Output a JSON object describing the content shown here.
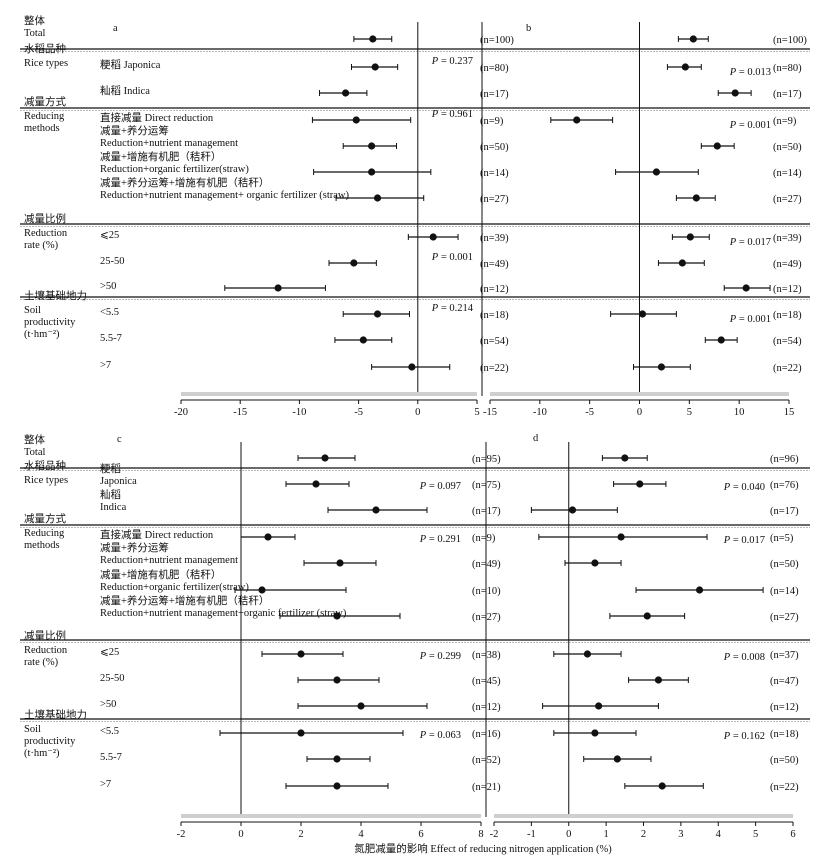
{
  "labels": {
    "groups": [
      {
        "cn": "整体",
        "en": [
          "Total"
        ]
      },
      {
        "cn": "水稻品种",
        "en": [
          "Rice types"
        ]
      },
      {
        "cn": "减量方式",
        "en": [
          "Reducing",
          "methods"
        ]
      },
      {
        "cn": "减量比例",
        "en": [
          "Reduction",
          "rate (%)"
        ]
      },
      {
        "cn": "土壤基础地力",
        "en": [
          "Soil",
          "productivity",
          "(t·hm⁻²)"
        ]
      }
    ],
    "top_rows": [
      [],
      [
        "粳稻 Japonica"
      ],
      [
        "籼稻 Indica"
      ],
      [
        "直接减量 Direct reduction"
      ],
      [
        "减量+养分运筹",
        "Reduction+nutrient management"
      ],
      [
        "减量+增施有机肥（秸秆）",
        "Reduction+organic fertilizer(straw)"
      ],
      [
        "减量+养分运筹+增施有机肥（秸秆）",
        "Reduction+nutrient management+ organic fertilizer (straw)"
      ],
      [
        "⩽25"
      ],
      [
        "25-50"
      ],
      [
        ">50"
      ],
      [
        "<5.5"
      ],
      [
        "5.5-7"
      ],
      [
        ">7"
      ]
    ],
    "bottom_rows": [
      [],
      [
        "粳稻",
        "Japonica"
      ],
      [
        "籼稻",
        "Indica"
      ],
      [
        "直接减量 Direct reduction"
      ],
      [
        "减量+养分运筹",
        "Reduction+nutrient management"
      ],
      [
        "减量+增施有机肥（秸秆）",
        "Reduction+organic fertilizer(straw)"
      ],
      [
        "减量+养分运筹+增施有机肥（秸秆）",
        "Reduction+nutrient management+organic fertilizer (straw)"
      ],
      [
        "⩽25"
      ],
      [
        "25-50"
      ],
      [
        ">50"
      ],
      [
        "<5.5"
      ],
      [
        "5.5-7"
      ],
      [
        ">7"
      ]
    ]
  },
  "xlabel": "氮肥减量的影响 Effect of reducing nitrogen application (%)",
  "chart_data": [
    {
      "type": "scatter",
      "panel": "a",
      "xlim": [
        -20,
        5
      ],
      "xticks": [
        -20,
        -15,
        -10,
        -5,
        0,
        5
      ],
      "points": [
        {
          "x": -3.8,
          "lo": -5.4,
          "hi": -2.2
        },
        {
          "x": -3.6,
          "lo": -5.6,
          "hi": -1.7
        },
        {
          "x": -6.1,
          "lo": -8.3,
          "hi": -4.3
        },
        {
          "x": -5.2,
          "lo": -8.9,
          "hi": -0.6
        },
        {
          "x": -3.9,
          "lo": -6.3,
          "hi": -1.8
        },
        {
          "x": -3.9,
          "lo": -8.8,
          "hi": 1.1
        },
        {
          "x": -3.4,
          "lo": -6.9,
          "hi": 0.5
        },
        {
          "x": 1.3,
          "lo": -0.8,
          "hi": 3.4
        },
        {
          "x": -5.4,
          "lo": -7.5,
          "hi": -3.5
        },
        {
          "x": -11.8,
          "lo": -16.3,
          "hi": -7.8
        },
        {
          "x": -3.4,
          "lo": -6.3,
          "hi": -0.7
        },
        {
          "x": -4.6,
          "lo": -7.0,
          "hi": -2.2
        },
        {
          "x": -0.5,
          "lo": -3.9,
          "hi": 2.7
        }
      ],
      "n": [
        "(n=100)",
        "(n=80)",
        "(n=17)",
        "(n=9)",
        "(n=50)",
        "(n=14)",
        "(n=27)",
        "(n=39)",
        "(n=49)",
        "(n=12)",
        "(n=18)",
        "(n=54)",
        "(n=22)"
      ],
      "p": [
        {
          "row": 1,
          "value": "0.237"
        },
        {
          "row": 3,
          "value": "0.961"
        },
        {
          "row": 8,
          "value": "0.001"
        },
        {
          "row": 10,
          "value": "0.214"
        }
      ]
    },
    {
      "type": "scatter",
      "panel": "b",
      "xlim": [
        -15,
        15
      ],
      "xticks": [
        -15,
        -10,
        -5,
        0,
        5,
        10,
        15
      ],
      "points": [
        {
          "x": 5.4,
          "lo": 3.9,
          "hi": 6.9
        },
        {
          "x": 4.6,
          "lo": 2.8,
          "hi": 6.2
        },
        {
          "x": 9.6,
          "lo": 7.9,
          "hi": 11.2
        },
        {
          "x": -6.3,
          "lo": -8.9,
          "hi": -2.7
        },
        {
          "x": 7.8,
          "lo": 6.2,
          "hi": 9.5
        },
        {
          "x": 1.7,
          "lo": -2.4,
          "hi": 5.9
        },
        {
          "x": 5.7,
          "lo": 3.7,
          "hi": 7.6
        },
        {
          "x": 5.1,
          "lo": 3.3,
          "hi": 7.0
        },
        {
          "x": 4.3,
          "lo": 1.9,
          "hi": 6.5
        },
        {
          "x": 10.7,
          "lo": 8.5,
          "hi": 13.1
        },
        {
          "x": 0.3,
          "lo": -2.9,
          "hi": 3.7
        },
        {
          "x": 8.2,
          "lo": 6.6,
          "hi": 9.8
        },
        {
          "x": 2.2,
          "lo": -0.6,
          "hi": 5.1
        }
      ],
      "n": [
        "(n=100)",
        "(n=80)",
        "(n=17)",
        "(n=9)",
        "(n=50)",
        "(n=14)",
        "(n=27)",
        "(n=39)",
        "(n=49)",
        "(n=12)",
        "(n=18)",
        "(n=54)",
        "(n=22)"
      ],
      "p": [
        {
          "row": 1,
          "value": "0.013"
        },
        {
          "row": 3,
          "value": "0.001"
        },
        {
          "row": 7,
          "value": "0.017"
        },
        {
          "row": 10,
          "value": "0.001"
        }
      ]
    },
    {
      "type": "scatter",
      "panel": "c",
      "xlim": [
        -2,
        8
      ],
      "xticks": [
        -2,
        0,
        2,
        4,
        6,
        8
      ],
      "points": [
        {
          "x": 2.8,
          "lo": 1.9,
          "hi": 3.8
        },
        {
          "x": 2.5,
          "lo": 1.5,
          "hi": 3.6
        },
        {
          "x": 4.5,
          "lo": 2.9,
          "hi": 6.2
        },
        {
          "x": 0.9,
          "lo": 0.0,
          "hi": 1.8
        },
        {
          "x": 3.3,
          "lo": 2.1,
          "hi": 4.5
        },
        {
          "x": 0.7,
          "lo": -0.2,
          "hi": 3.5
        },
        {
          "x": 3.2,
          "lo": 1.3,
          "hi": 5.3
        },
        {
          "x": 2.0,
          "lo": 0.7,
          "hi": 3.4
        },
        {
          "x": 3.2,
          "lo": 1.9,
          "hi": 4.6
        },
        {
          "x": 4.0,
          "lo": 1.9,
          "hi": 6.2
        },
        {
          "x": 2.0,
          "lo": -0.7,
          "hi": 5.4
        },
        {
          "x": 3.2,
          "lo": 2.2,
          "hi": 4.3
        },
        {
          "x": 3.2,
          "lo": 1.5,
          "hi": 4.9
        }
      ],
      "n": [
        "(n=95)",
        "(n=75)",
        "(n=17)",
        "(n=9)",
        "(n=49)",
        "(n=10)",
        "(n=27)",
        "(n=38)",
        "(n=45)",
        "(n=12)",
        "(n=16)",
        "(n=52)",
        "(n=21)"
      ],
      "p": [
        {
          "row": 1,
          "value": "0.097"
        },
        {
          "row": 3,
          "value": "0.291"
        },
        {
          "row": 7,
          "value": "0.299"
        },
        {
          "row": 10,
          "value": "0.063"
        }
      ]
    },
    {
      "type": "scatter",
      "panel": "d",
      "xlim": [
        -2,
        6
      ],
      "xticks": [
        -2,
        -1,
        0,
        1,
        2,
        3,
        4,
        5,
        6
      ],
      "points": [
        {
          "x": 1.5,
          "lo": 0.9,
          "hi": 2.1
        },
        {
          "x": 1.9,
          "lo": 1.2,
          "hi": 2.6
        },
        {
          "x": 0.1,
          "lo": -1.0,
          "hi": 1.3
        },
        {
          "x": 1.4,
          "lo": -0.8,
          "hi": 3.7
        },
        {
          "x": 0.7,
          "lo": -0.1,
          "hi": 1.4
        },
        {
          "x": 3.5,
          "lo": 1.8,
          "hi": 5.2
        },
        {
          "x": 2.1,
          "lo": 1.1,
          "hi": 3.1
        },
        {
          "x": 0.5,
          "lo": -0.4,
          "hi": 1.4
        },
        {
          "x": 2.4,
          "lo": 1.6,
          "hi": 3.2
        },
        {
          "x": 0.8,
          "lo": -0.7,
          "hi": 2.4
        },
        {
          "x": 0.7,
          "lo": -0.4,
          "hi": 1.8
        },
        {
          "x": 1.3,
          "lo": 0.4,
          "hi": 2.2
        },
        {
          "x": 2.5,
          "lo": 1.5,
          "hi": 3.6
        }
      ],
      "n": [
        "(n=96)",
        "(n=76)",
        "(n=17)",
        "(n=5)",
        "(n=50)",
        "(n=14)",
        "(n=27)",
        "(n=37)",
        "(n=47)",
        "(n=12)",
        "(n=18)",
        "(n=50)",
        "(n=22)"
      ],
      "p": [
        {
          "row": 1,
          "value": "0.040"
        },
        {
          "row": 3,
          "value": "0.017"
        },
        {
          "row": 7,
          "value": "0.008"
        },
        {
          "row": 10,
          "value": "0.162"
        }
      ]
    }
  ]
}
